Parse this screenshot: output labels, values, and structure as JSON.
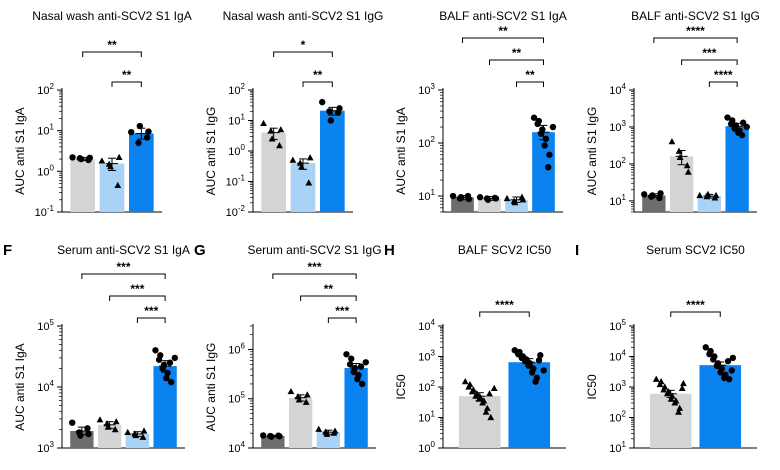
{
  "colors": {
    "dark": "#6d6d6d",
    "light": "#d4d4d4",
    "lightblue": "#a9d3f6",
    "blue": "#0a82f0"
  },
  "chart_data": [
    {
      "type": "bar",
      "panel": "",
      "title": "Nasal wash anti-SCV2 S1 IgA",
      "ylabel": "AUC anti S1 IgA",
      "yscale": "log",
      "ylim": [
        0.1,
        100
      ],
      "ticks": [
        0.1,
        1,
        10,
        100
      ],
      "tick_labels": [
        "10-1",
        "100",
        "101",
        "102"
      ],
      "groups": [
        {
          "color": "light",
          "marker": "circle",
          "value": 2.0,
          "err": [
            1.85,
            2.2
          ],
          "points": [
            2.2,
            2.1,
            2.0,
            1.9,
            2.15
          ]
        },
        {
          "color": "lightblue",
          "marker": "triangle",
          "value": 1.55,
          "err": [
            1.05,
            2.1
          ],
          "points": [
            1.8,
            1.5,
            1.3,
            0.45,
            2.2
          ]
        },
        {
          "color": "blue",
          "marker": "circle",
          "value": 8.5,
          "err": [
            6.2,
            11.5
          ],
          "points": [
            9.2,
            5.0,
            13.0,
            6.8,
            9.5
          ]
        }
      ],
      "significance": [
        {
          "from": 0,
          "to": 2,
          "label": "**"
        },
        {
          "from": 1,
          "to": 2,
          "label": "**"
        }
      ]
    },
    {
      "type": "bar",
      "panel": "",
      "title": "Nasal wash anti-SCV2 S1 IgG",
      "ylabel": "AUC anti S1 IgG",
      "yscale": "log",
      "ylim": [
        0.01,
        100
      ],
      "ticks": [
        0.01,
        0.1,
        1,
        10,
        100
      ],
      "tick_labels": [
        "10-2",
        "10-1",
        "100",
        "101",
        "102"
      ],
      "groups": [
        {
          "color": "light",
          "marker": "triangle",
          "value": 4.0,
          "err": [
            2.4,
            5.6
          ],
          "points": [
            8.0,
            4.5,
            2.5,
            1.5,
            5.0
          ]
        },
        {
          "color": "lightblue",
          "marker": "triangle",
          "value": 0.4,
          "err": [
            0.25,
            0.55
          ],
          "points": [
            0.5,
            0.4,
            0.3,
            0.09,
            0.6
          ]
        },
        {
          "color": "blue",
          "marker": "circle",
          "value": 21,
          "err": [
            15,
            27
          ],
          "points": [
            40,
            20,
            10,
            18,
            25
          ]
        }
      ],
      "significance": [
        {
          "from": 0,
          "to": 2,
          "label": "*"
        },
        {
          "from": 1,
          "to": 2,
          "label": "**"
        }
      ]
    },
    {
      "type": "bar",
      "panel": "",
      "title": "BALF anti-SCV2 S1 IgA",
      "ylabel": "AUC anti S1 IgA",
      "yscale": "log",
      "ylim": [
        5,
        1000
      ],
      "ticks": [
        10,
        100,
        1000
      ],
      "tick_labels": [
        "101",
        "102",
        "103"
      ],
      "groups": [
        {
          "color": "dark",
          "marker": "circle",
          "value": 9.5,
          "err": [
            8.5,
            10.2
          ],
          "points": [
            10,
            9,
            9.5,
            10,
            8.8
          ]
        },
        {
          "color": "light",
          "marker": "circle",
          "value": 9.0,
          "err": [
            8.3,
            9.8
          ],
          "points": [
            9.5,
            9,
            8.5,
            9.2,
            9
          ]
        },
        {
          "color": "lightblue",
          "marker": "triangle",
          "value": 8.5,
          "err": [
            7.6,
            9.6
          ],
          "points": [
            9,
            8,
            7.5,
            9.5,
            8.5
          ]
        },
        {
          "color": "blue",
          "marker": "circle",
          "value": 160,
          "err": [
            115,
            215
          ],
          "points": [
            300,
            260,
            230,
            180,
            150,
            120,
            90,
            60,
            35,
            200
          ]
        }
      ],
      "significance": [
        {
          "from": 0,
          "to": 3,
          "label": "**"
        },
        {
          "from": 1,
          "to": 3,
          "label": "**"
        },
        {
          "from": 2,
          "to": 3,
          "label": "**"
        }
      ]
    },
    {
      "type": "bar",
      "panel": "",
      "title": "BALF anti-SCV2 S1 IgG",
      "ylabel": "AUC anti S1 IgG",
      "yscale": "log",
      "ylim": [
        5,
        10000
      ],
      "ticks": [
        10,
        100,
        1000,
        10000
      ],
      "tick_labels": [
        "101",
        "102",
        "103",
        "104"
      ],
      "groups": [
        {
          "color": "dark",
          "marker": "circle",
          "value": 14,
          "err": [
            12.5,
            15.5
          ],
          "points": [
            15,
            13,
            14,
            12,
            16
          ]
        },
        {
          "color": "light",
          "marker": "triangle",
          "value": 160,
          "err": [
            95,
            230
          ],
          "points": [
            400,
            220,
            150,
            90,
            60
          ]
        },
        {
          "color": "lightblue",
          "marker": "triangle",
          "value": 13.5,
          "err": [
            12,
            15
          ],
          "points": [
            14,
            13,
            15,
            12,
            14
          ]
        },
        {
          "color": "blue",
          "marker": "circle",
          "value": 1050,
          "err": [
            850,
            1250
          ],
          "points": [
            1800,
            1500,
            1200,
            1100,
            900,
            800,
            700,
            1300,
            600,
            1000
          ]
        }
      ],
      "significance": [
        {
          "from": 0,
          "to": 3,
          "label": "****"
        },
        {
          "from": 1,
          "to": 3,
          "label": "***"
        },
        {
          "from": 2,
          "to": 3,
          "label": "****"
        }
      ]
    },
    {
      "type": "bar",
      "panel": "F",
      "title": "Serum anti-SCV2 S1 IgA",
      "ylabel": "AUC anti S1 IgA",
      "yscale": "log",
      "ylim": [
        1000,
        100000
      ],
      "ticks": [
        1000,
        10000,
        100000
      ],
      "tick_labels": [
        "103",
        "104",
        "105"
      ],
      "groups": [
        {
          "color": "dark",
          "marker": "circle",
          "value": 1900,
          "err": [
            1650,
            2200
          ],
          "points": [
            2600,
            1800,
            1600,
            2100,
            1700
          ]
        },
        {
          "color": "light",
          "marker": "triangle",
          "value": 2400,
          "err": [
            2100,
            2700
          ],
          "points": [
            2900,
            2500,
            2200,
            2000,
            2700
          ]
        },
        {
          "color": "lightblue",
          "marker": "triangle",
          "value": 1700,
          "err": [
            1550,
            1850
          ],
          "points": [
            1800,
            1700,
            1600,
            1500,
            1900
          ]
        },
        {
          "color": "blue",
          "marker": "circle",
          "value": 22000,
          "err": [
            17500,
            27000
          ],
          "points": [
            40000,
            33000,
            28000,
            23000,
            20000,
            17000,
            14000,
            12000,
            25000,
            30000
          ]
        }
      ],
      "significance": [
        {
          "from": 0,
          "to": 3,
          "label": "***"
        },
        {
          "from": 1,
          "to": 3,
          "label": "***"
        },
        {
          "from": 2,
          "to": 3,
          "label": "***"
        }
      ]
    },
    {
      "type": "bar",
      "panel": "G",
      "title": "Serum anti-SCV2 S1 IgG",
      "ylabel": "AUC anti S1 IgG",
      "yscale": "log",
      "ylim": [
        10000,
        3000000
      ],
      "ticks": [
        10000,
        100000,
        1000000
      ],
      "tick_labels": [
        "104",
        "105",
        "106"
      ],
      "groups": [
        {
          "color": "dark",
          "marker": "circle",
          "value": 17500,
          "err": [
            17000,
            18000
          ],
          "points": [
            18000,
            17500,
            17000,
            17800,
            17300
          ]
        },
        {
          "color": "light",
          "marker": "triangle",
          "value": 105000,
          "err": [
            90000,
            120000
          ],
          "points": [
            140000,
            110000,
            95000,
            85000,
            120000
          ]
        },
        {
          "color": "lightblue",
          "marker": "triangle",
          "value": 21000,
          "err": [
            19000,
            23000
          ],
          "points": [
            24000,
            21000,
            19000,
            20000,
            22000
          ]
        },
        {
          "color": "blue",
          "marker": "circle",
          "value": 420000,
          "err": [
            330000,
            520000
          ],
          "points": [
            800000,
            650000,
            500000,
            420000,
            350000,
            300000,
            250000,
            200000,
            450000,
            550000
          ]
        }
      ],
      "significance": [
        {
          "from": 0,
          "to": 3,
          "label": "***"
        },
        {
          "from": 1,
          "to": 3,
          "label": "**"
        },
        {
          "from": 2,
          "to": 3,
          "label": "***"
        }
      ]
    },
    {
      "type": "bar",
      "panel": "H",
      "title": "BALF SCV2 IC50",
      "ylabel": "IC50",
      "yscale": "log",
      "ylim": [
        1,
        10000
      ],
      "ticks": [
        1,
        10,
        100,
        1000,
        10000
      ],
      "tick_labels": [
        "100",
        "101",
        "102",
        "103",
        "104"
      ],
      "groups": [
        {
          "color": "light",
          "marker": "triangle",
          "value": 50,
          "err": [
            36,
            65
          ],
          "points": [
            150,
            120,
            100,
            80,
            70,
            60,
            50,
            45,
            40,
            35,
            30,
            20,
            15,
            10,
            60,
            90
          ]
        },
        {
          "color": "blue",
          "marker": "circle",
          "value": 650,
          "err": [
            470,
            850
          ],
          "points": [
            1600,
            1400,
            1200,
            1000,
            900,
            800,
            700,
            600,
            500,
            400,
            300,
            200,
            150,
            1100,
            750,
            350
          ]
        }
      ],
      "significance": [
        {
          "from": 0,
          "to": 1,
          "label": "****"
        }
      ]
    },
    {
      "type": "bar",
      "panel": "I",
      "title": "Serum SCV2 IC50",
      "ylabel": "IC50",
      "yscale": "log",
      "ylim": [
        10,
        100000
      ],
      "ticks": [
        10,
        100,
        1000,
        10000,
        100000
      ],
      "tick_labels": [
        "101",
        "102",
        "103",
        "104",
        "105"
      ],
      "groups": [
        {
          "color": "light",
          "marker": "triangle",
          "value": 600,
          "err": [
            450,
            780
          ],
          "points": [
            1800,
            1500,
            1200,
            1000,
            800,
            700,
            600,
            500,
            400,
            350,
            300,
            200,
            150,
            1300,
            900
          ]
        },
        {
          "color": "blue",
          "marker": "circle",
          "value": 5200,
          "err": [
            4000,
            6600
          ],
          "points": [
            20000,
            15000,
            12000,
            10000,
            8000,
            6000,
            5000,
            4000,
            3000,
            2500,
            2000,
            1800,
            7000,
            9000,
            3500
          ]
        }
      ],
      "significance": [
        {
          "from": 0,
          "to": 1,
          "label": "****"
        }
      ]
    }
  ]
}
